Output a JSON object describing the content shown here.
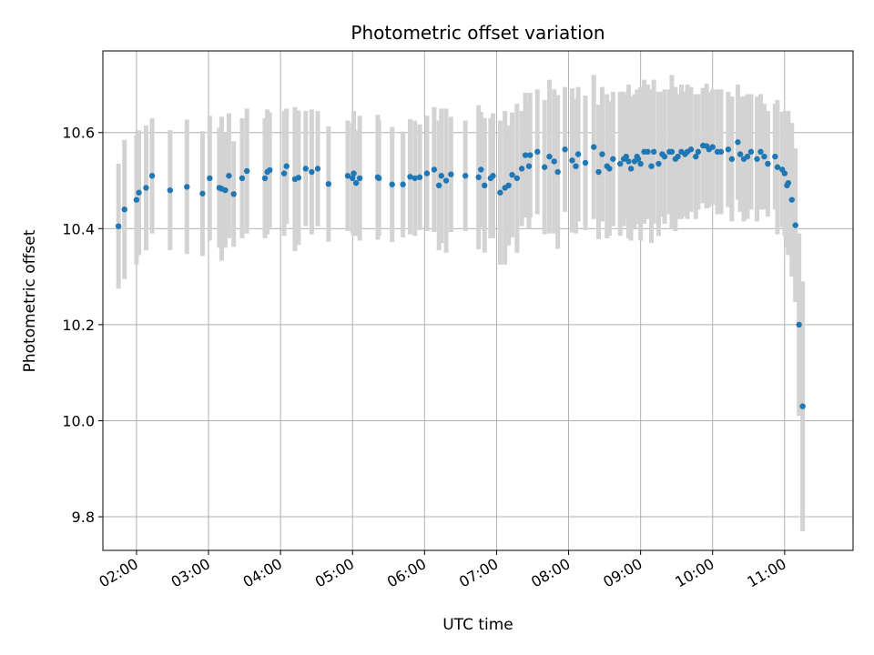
{
  "chart_data": {
    "type": "scatter",
    "title": "Photometric offset variation",
    "xlabel": "UTC time",
    "ylabel": "Photometric offset",
    "x_axis_type": "time",
    "xlim": [
      "01:32",
      "11:57"
    ],
    "ylim": [
      9.73,
      10.77
    ],
    "x_tick_labels": [
      "02:00",
      "03:00",
      "04:00",
      "05:00",
      "06:00",
      "07:00",
      "08:00",
      "09:00",
      "10:00",
      "11:00"
    ],
    "y_ticks": [
      9.8,
      10.0,
      10.2,
      10.4,
      10.6
    ],
    "y_tick_labels": [
      "9.8",
      "10.0",
      "10.2",
      "10.4",
      "10.6"
    ],
    "grid": true,
    "colors": {
      "point": "#1f77b4",
      "errorbar": "#d3d3d3",
      "grid": "#b0b0b0"
    },
    "series": [
      {
        "x": [
          "01:45",
          "01:50",
          "02:00",
          "02:02",
          "02:08",
          "02:13",
          "02:28",
          "02:42",
          "02:55",
          "03:01",
          "03:09",
          "03:11",
          "03:14",
          "03:17",
          "03:21",
          "03:28",
          "03:32",
          "03:47",
          "03:49",
          "03:51",
          "04:03",
          "04:05",
          "04:12",
          "04:15",
          "04:21",
          "04:26",
          "04:31",
          "04:40",
          "04:56",
          "05:00",
          "05:01",
          "05:03",
          "05:06",
          "05:21",
          "05:22",
          "05:33",
          "05:42",
          "05:48",
          "05:52",
          "05:56",
          "06:02",
          "06:08",
          "06:12",
          "06:14",
          "06:18",
          "06:22",
          "06:34",
          "06:45",
          "06:47",
          "06:50",
          "06:55",
          "06:57",
          "07:03",
          "07:07",
          "07:10",
          "07:13",
          "07:17",
          "07:21",
          "07:24",
          "07:27",
          "07:28",
          "07:34",
          "07:40",
          "07:44",
          "07:48",
          "07:51",
          "07:57",
          "08:03",
          "08:06",
          "08:08",
          "08:14",
          "08:21",
          "08:25",
          "08:28",
          "08:32",
          "08:34",
          "08:37",
          "08:43",
          "08:46",
          "08:48",
          "08:50",
          "08:52",
          "08:55",
          "08:57",
          "08:58",
          "09:00",
          "09:03",
          "09:06",
          "09:09",
          "09:11",
          "09:15",
          "09:18",
          "09:20",
          "09:24",
          "09:26",
          "09:29",
          "09:31",
          "09:34",
          "09:37",
          "09:39",
          "09:42",
          "09:46",
          "09:48",
          "09:52",
          "09:55",
          "09:57",
          "10:00",
          "10:04",
          "10:07",
          "10:13",
          "10:16",
          "10:21",
          "10:23",
          "10:26",
          "10:29",
          "10:32",
          "10:37",
          "10:40",
          "10:43",
          "10:46",
          "10:52",
          "10:54",
          "10:58",
          "11:00",
          "11:02",
          "11:03",
          "11:06",
          "11:09",
          "11:12",
          "11:15"
        ],
        "y": [
          10.405,
          10.44,
          10.46,
          10.475,
          10.485,
          10.51,
          10.48,
          10.487,
          10.473,
          10.505,
          10.485,
          10.483,
          10.48,
          10.51,
          10.472,
          10.505,
          10.52,
          10.505,
          10.518,
          10.522,
          10.515,
          10.53,
          10.503,
          10.506,
          10.525,
          10.518,
          10.525,
          10.493,
          10.51,
          10.505,
          10.515,
          10.495,
          10.505,
          10.507,
          10.505,
          10.492,
          10.492,
          10.508,
          10.505,
          10.507,
          10.515,
          10.523,
          10.49,
          10.51,
          10.5,
          10.513,
          10.51,
          10.507,
          10.523,
          10.49,
          10.505,
          10.51,
          10.475,
          10.485,
          10.49,
          10.512,
          10.505,
          10.525,
          10.553,
          10.53,
          10.553,
          10.56,
          10.528,
          10.55,
          10.54,
          10.518,
          10.565,
          10.542,
          10.53,
          10.555,
          10.537,
          10.57,
          10.518,
          10.555,
          10.53,
          10.525,
          10.545,
          10.535,
          10.545,
          10.55,
          10.54,
          10.525,
          10.54,
          10.55,
          10.545,
          10.535,
          10.56,
          10.56,
          10.53,
          10.56,
          10.535,
          10.555,
          10.55,
          10.56,
          10.56,
          10.545,
          10.55,
          10.56,
          10.555,
          10.56,
          10.565,
          10.55,
          10.56,
          10.573,
          10.572,
          10.565,
          10.57,
          10.56,
          10.56,
          10.565,
          10.545,
          10.58,
          10.555,
          10.545,
          10.55,
          10.56,
          10.545,
          10.56,
          10.55,
          10.535,
          10.55,
          10.528,
          10.523,
          10.515,
          10.49,
          10.495,
          10.46,
          10.407,
          10.2,
          10.03
        ],
        "yerr": [
          0.13,
          0.145,
          0.135,
          0.13,
          0.13,
          0.12,
          0.125,
          0.14,
          0.13,
          0.13,
          0.125,
          0.15,
          0.12,
          0.13,
          0.11,
          0.125,
          0.13,
          0.125,
          0.13,
          0.12,
          0.13,
          0.12,
          0.15,
          0.14,
          0.12,
          0.13,
          0.12,
          0.12,
          0.115,
          0.115,
          0.13,
          0.11,
          0.13,
          0.13,
          0.12,
          0.12,
          0.11,
          0.12,
          0.12,
          0.11,
          0.12,
          0.13,
          0.135,
          0.14,
          0.15,
          0.12,
          0.115,
          0.15,
          0.12,
          0.14,
          0.125,
          0.13,
          0.15,
          0.16,
          0.125,
          0.13,
          0.155,
          0.12,
          0.13,
          0.13,
          0.13,
          0.13,
          0.14,
          0.16,
          0.15,
          0.16,
          0.13,
          0.15,
          0.14,
          0.14,
          0.14,
          0.15,
          0.14,
          0.14,
          0.15,
          0.14,
          0.14,
          0.15,
          0.14,
          0.13,
          0.16,
          0.15,
          0.14,
          0.14,
          0.13,
          0.16,
          0.15,
          0.14,
          0.16,
          0.15,
          0.15,
          0.13,
          0.14,
          0.13,
          0.16,
          0.15,
          0.13,
          0.14,
          0.13,
          0.14,
          0.13,
          0.13,
          0.12,
          0.12,
          0.13,
          0.12,
          0.12,
          0.13,
          0.13,
          0.12,
          0.13,
          0.12,
          0.12,
          0.13,
          0.13,
          0.12,
          0.13,
          0.12,
          0.11,
          0.11,
          0.11,
          0.14,
          0.12,
          0.13,
          0.13,
          0.15,
          0.16,
          0.16,
          0.19,
          0.26
        ]
      }
    ]
  }
}
